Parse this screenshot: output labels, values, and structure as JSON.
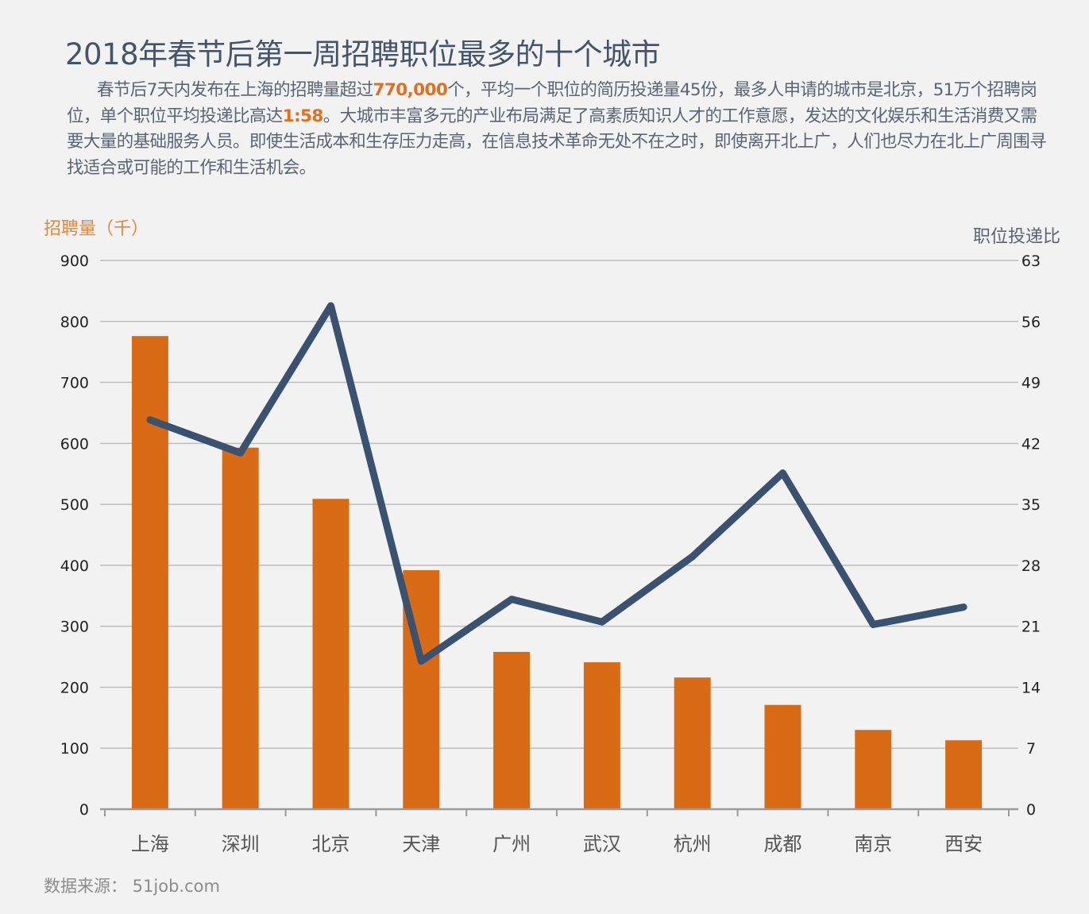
{
  "header": {
    "title": "2018年春节后第一周招聘职位最多的十个城市",
    "description_parts": [
      {
        "text": "春节后7天内发布在上海的招聘量超过",
        "highlight": false
      },
      {
        "text": "770,000",
        "highlight": true
      },
      {
        "text": "个，平均一个职位的简历投递量45份，最多人申请的城市是北京，51万个招聘岗位，单个职位平均投递比高达",
        "highlight": false
      },
      {
        "text": "1:58",
        "highlight": true
      },
      {
        "text": "。大城市丰富多元的产业布局满足了高素质知识人才的工作意愿，发达的文化娱乐和生活消费又需要大量的基础服务人员。即使生活成本和生存压力走高，在信息技术革命无处不在之时，即使离开北上广，人们也尽力在北上广周围寻找适合或可能的工作和生活机会。",
        "highlight": false
      }
    ]
  },
  "footer": {
    "source": "数据来源： 51job.com"
  },
  "colors": {
    "bar": "#d96b16",
    "line": "#3b5170",
    "highlight": "#e0701f",
    "grid": "#bdbdbd",
    "axis": "#9a9a9a"
  },
  "chart_data": {
    "type": "bar",
    "title": "2018年春节后第一周招聘职位最多的十个城市",
    "categories": [
      "上海",
      "深圳",
      "北京",
      "天津",
      "广州",
      "武汉",
      "杭州",
      "成都",
      "南京",
      "西安"
    ],
    "series": [
      {
        "name": "招聘量（千）",
        "type": "bar",
        "axis": "left",
        "values": [
          776,
          593,
          509,
          392,
          258,
          241,
          216,
          171,
          130,
          113
        ]
      },
      {
        "name": "职位投递比",
        "type": "line",
        "axis": "right",
        "values": [
          44.7,
          40.9,
          57.8,
          17.0,
          24.1,
          21.5,
          29.0,
          38.6,
          21.2,
          23.2
        ]
      }
    ],
    "ylabel": "招聘量（千）",
    "ylabel_right": "职位投递比",
    "xlabel": "",
    "ylim": [
      0,
      900
    ],
    "yticks": [
      0,
      100,
      200,
      300,
      400,
      500,
      600,
      700,
      800,
      900
    ],
    "ylim_right": [
      0,
      63
    ],
    "yticks_right": [
      0,
      7,
      14,
      21,
      28,
      35,
      42,
      49,
      56,
      63
    ],
    "grid": true,
    "legend": "none"
  }
}
